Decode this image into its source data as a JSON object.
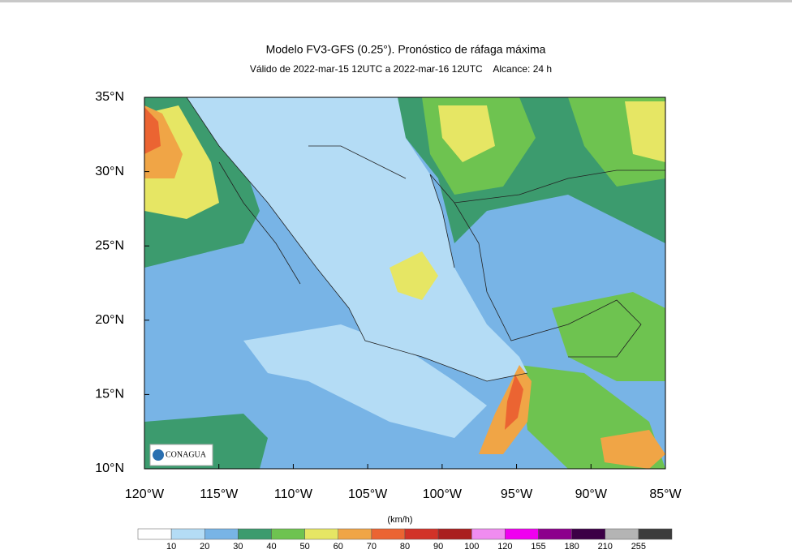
{
  "header": {
    "title": "Modelo FV3-GFS (0.25°). Pronóstico de ráfaga máxima",
    "subtitle": "Válido de 2022-mar-15 12UTC a 2022-mar-16 12UTC    Alcance: 24 h"
  },
  "map": {
    "lat_labels": [
      "35°N",
      "30°N",
      "25°N",
      "20°N",
      "15°N",
      "10°N"
    ],
    "lon_labels": [
      "120°W",
      "115°W",
      "110°W",
      "105°W",
      "100°W",
      "95°W",
      "90°W",
      "85°W"
    ],
    "logo": "CONAGUA"
  },
  "colorbar": {
    "unit": "(km/h)",
    "levels": [
      10,
      20,
      30,
      40,
      50,
      60,
      70,
      80,
      90,
      100,
      120,
      155,
      180,
      210,
      255
    ],
    "colors": [
      "#ffffff",
      "#b4dcf5",
      "#78b4e6",
      "#3c9b6e",
      "#6ec350",
      "#e6e664",
      "#f0a546",
      "#eb6432",
      "#d23228",
      "#aa1e1e",
      "#f08cf0",
      "#f000f0",
      "#8c008c",
      "#3c0046",
      "#b4b4b4",
      "#3c3c3c"
    ]
  }
}
